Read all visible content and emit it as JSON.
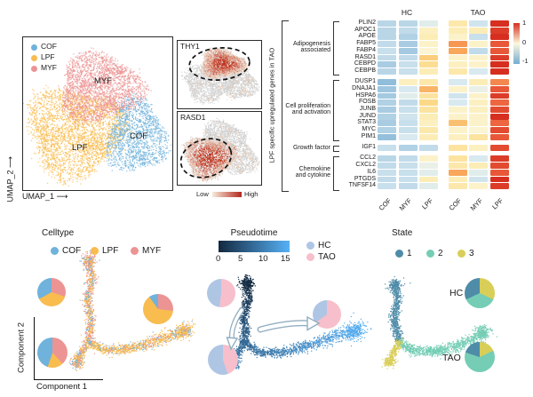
{
  "chart_data": [
    {
      "id": "umap_celltype",
      "type": "scatter",
      "subtype": "umap",
      "xlabel": "UMAP_1",
      "ylabel": "UMAP_2",
      "clusters": [
        {
          "name": "COF",
          "color": "#6FB2DB"
        },
        {
          "name": "LPF",
          "color": "#F8BC4F"
        },
        {
          "name": "MYF",
          "color": "#EC9494"
        }
      ]
    },
    {
      "id": "feature_plots",
      "type": "scatter",
      "subtype": "feature-expression",
      "panels": [
        {
          "gene": "THY1",
          "highlighted_cluster": "MYF"
        },
        {
          "gene": "RASD1",
          "highlighted_cluster": "LPF"
        }
      ],
      "scale_low": "Low",
      "scale_high": "High",
      "scale_colors": [
        "#F7EBDA",
        "#B3271D"
      ]
    },
    {
      "id": "heatmap",
      "type": "heatmap",
      "side_title": "LPF specific upregulated genes in TAO",
      "condition_labels": [
        "HC",
        "TAO"
      ],
      "column_labels": [
        "COF",
        "MYF",
        "LPF",
        "COF",
        "MYF",
        "LPF"
      ],
      "colorbar_ticks": [
        "1",
        "0",
        "-1"
      ],
      "colorbar_range": [
        1,
        -1
      ],
      "categories": [
        {
          "label_lines": [
            "Adipogenesis",
            "associated"
          ],
          "genes": [
            "PLIN2",
            "APOC1",
            "APOE",
            "FABP5",
            "FABP4",
            "RASD1",
            "CEBPD",
            "CEBPB"
          ]
        },
        {
          "label_lines": [
            "Cell proliferation",
            "and activation"
          ],
          "genes": [
            "DUSP1",
            "DNAJA1",
            "HSPA6",
            "FOSB",
            "JUNB",
            "JUND",
            "STAT3",
            "MYC",
            "PIM1"
          ]
        },
        {
          "label_lines": [
            "Growth factor"
          ],
          "genes": [
            "IGF1"
          ]
        },
        {
          "label_lines": [
            "Chemokine",
            "and cytokine"
          ],
          "genes": [
            "CCL2",
            "CXCL2",
            "IL6",
            "PTGDS",
            "TNFSF14"
          ]
        }
      ],
      "values": {
        "PLIN2": [
          -0.4,
          -0.4,
          -0.15,
          0.25,
          -0.25,
          1.0
        ],
        "APOC1": [
          -0.4,
          -0.35,
          0.15,
          0.2,
          0.2,
          0.95
        ],
        "APOE": [
          -0.4,
          -0.45,
          0.2,
          0.1,
          -0.3,
          1.0
        ],
        "FABP5": [
          -0.35,
          -0.5,
          0.1,
          0.65,
          0.1,
          0.85
        ],
        "FABP4": [
          -0.3,
          -0.55,
          0.05,
          0.6,
          -0.35,
          0.85
        ],
        "RASD1": [
          -0.35,
          -0.35,
          0.45,
          0.1,
          0.1,
          0.95
        ],
        "CEBPD": [
          -0.5,
          -0.3,
          0.35,
          0.15,
          0.1,
          1.0
        ],
        "CEBPB": [
          -0.4,
          -0.3,
          0.2,
          0.25,
          -0.2,
          1.0
        ],
        "DUSP1": [
          -0.75,
          0.15,
          0.25,
          -0.2,
          0.2,
          0.7
        ],
        "DNAJA1": [
          -0.6,
          -0.2,
          0.55,
          0.1,
          -0.1,
          0.85
        ],
        "HSPA6": [
          -0.55,
          -0.15,
          0.3,
          -0.25,
          0.1,
          0.95
        ],
        "FOSB": [
          -0.45,
          -0.35,
          0.4,
          -0.2,
          0.15,
          0.8
        ],
        "JUNB": [
          -0.5,
          -0.3,
          0.3,
          0.1,
          0.15,
          0.9
        ],
        "JUND": [
          -0.45,
          -0.25,
          0.2,
          0.1,
          0.1,
          1.0
        ],
        "STAT3": [
          -0.5,
          -0.3,
          0.15,
          0.5,
          0.1,
          0.8
        ],
        "MYC": [
          -0.45,
          -0.3,
          0.25,
          0.1,
          0.05,
          0.9
        ],
        "PIM1": [
          -0.7,
          -0.2,
          0.2,
          0.15,
          0.3,
          0.85
        ],
        "IGF1": [
          -0.3,
          -0.45,
          -0.35,
          0.3,
          0.15,
          0.9
        ],
        "CCL2": [
          -0.4,
          -0.35,
          0.1,
          0.3,
          -0.2,
          0.95
        ],
        "CXCL2": [
          -0.35,
          -0.3,
          -0.1,
          0.25,
          0.2,
          0.9
        ],
        "IL6": [
          -0.3,
          -0.3,
          -0.15,
          0.6,
          -0.15,
          0.85
        ],
        "PTGDS": [
          -0.35,
          -0.3,
          0.2,
          0.2,
          -0.25,
          1.0
        ],
        "TNFSF14": [
          -0.3,
          -0.35,
          -0.15,
          0.25,
          0.1,
          0.95
        ]
      }
    },
    {
      "id": "trajectory_celltype",
      "type": "scatter",
      "subtype": "trajectory",
      "legend_title": "Celltype",
      "xlabel": "Component 1",
      "ylabel": "Component 2",
      "legend": [
        {
          "name": "COF",
          "color": "#6FB2DB"
        },
        {
          "name": "LPF",
          "color": "#F8BC4F"
        },
        {
          "name": "MYF",
          "color": "#EC9494"
        }
      ],
      "pies": [
        {
          "position": "upper-left",
          "slices": [
            {
              "name": "MYF",
              "frac": 0.3
            },
            {
              "name": "LPF",
              "frac": 0.37
            },
            {
              "name": "COF",
              "frac": 0.33
            }
          ]
        },
        {
          "position": "right",
          "slices": [
            {
              "name": "MYF",
              "frac": 0.27
            },
            {
              "name": "LPF",
              "frac": 0.63
            },
            {
              "name": "COF",
              "frac": 0.1
            }
          ]
        },
        {
          "position": "lower-left",
          "slices": [
            {
              "name": "MYF",
              "frac": 0.38
            },
            {
              "name": "LPF",
              "frac": 0.17
            },
            {
              "name": "COF",
              "frac": 0.45
            }
          ]
        }
      ]
    },
    {
      "id": "trajectory_pseudotime",
      "type": "scatter",
      "subtype": "trajectory",
      "legend_title": "Pseudotime",
      "colorbar_ticks": [
        "0",
        "5",
        "10",
        "15"
      ],
      "range": [
        0,
        15
      ],
      "gradient": [
        "#13283E",
        "#56B1F7"
      ],
      "group_legend": [
        {
          "name": "HC",
          "color": "#AEC6E4"
        },
        {
          "name": "TAO",
          "color": "#F6BFCB"
        }
      ],
      "pies": [
        {
          "position": "upper-left",
          "slices": [
            {
              "name": "TAO",
              "frac": 0.52
            },
            {
              "name": "HC",
              "frac": 0.48
            }
          ]
        },
        {
          "position": "lower-left",
          "slices": [
            {
              "name": "TAO",
              "frac": 0.45
            },
            {
              "name": "HC",
              "frac": 0.55
            }
          ]
        },
        {
          "position": "right",
          "slices": [
            {
              "name": "TAO",
              "frac": 0.65
            },
            {
              "name": "HC",
              "frac": 0.35
            }
          ]
        }
      ]
    },
    {
      "id": "trajectory_state",
      "type": "scatter",
      "subtype": "trajectory",
      "legend_title": "State",
      "legend": [
        {
          "name": "1",
          "color": "#4F8CA8"
        },
        {
          "name": "2",
          "color": "#74CDB4"
        },
        {
          "name": "3",
          "color": "#D9CE58"
        }
      ],
      "pies": [
        {
          "label": "HC",
          "slices": [
            {
              "name": "3",
              "frac": 0.32
            },
            {
              "name": "2",
              "frac": 0.36
            },
            {
              "name": "1",
              "frac": 0.32
            }
          ]
        },
        {
          "label": "TAO",
          "slices": [
            {
              "name": "3",
              "frac": 0.18
            },
            {
              "name": "2",
              "frac": 0.62
            },
            {
              "name": "1",
              "frac": 0.2
            }
          ]
        }
      ]
    }
  ]
}
